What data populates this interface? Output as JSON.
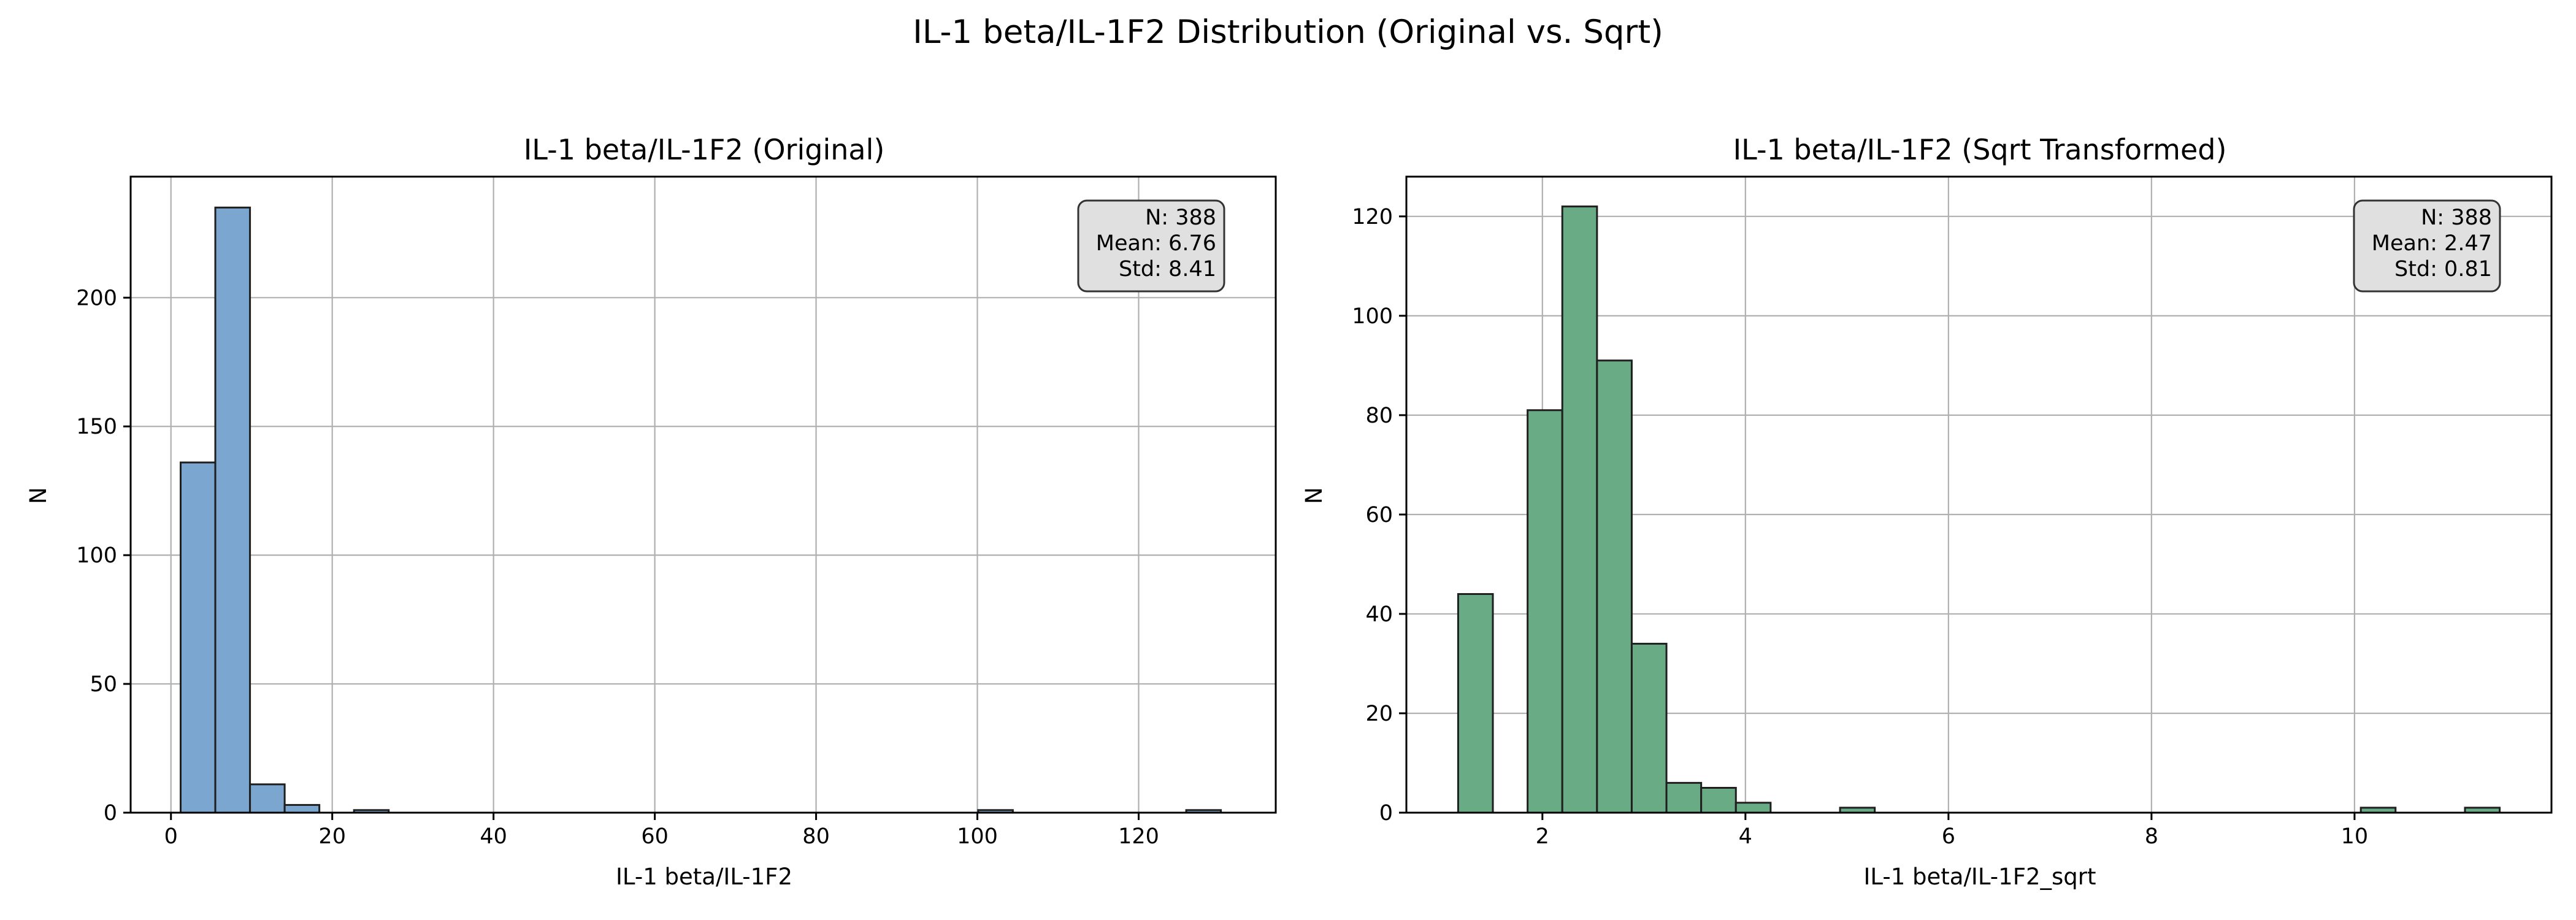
{
  "figure_title": "IL-1 beta/IL-1F2 Distribution (Original vs. Sqrt)",
  "chart_data": [
    {
      "type": "bar",
      "title": "IL-1 beta/IL-1F2 (Original)",
      "xlabel": "IL-1 beta/IL-1F2",
      "ylabel": "N",
      "xlim": [
        -5,
        137
      ],
      "ylim": [
        0,
        247
      ],
      "xticks": [
        0,
        20,
        40,
        60,
        80,
        100,
        120
      ],
      "yticks": [
        0,
        50,
        100,
        150,
        200
      ],
      "grid": true,
      "bar_color": "#7ba6cf",
      "edge_color": "#1f1f1f",
      "bin_width": 4.3,
      "bins_start": [
        1.2,
        5.5,
        9.8,
        14.1,
        18.4,
        22.7,
        27.0,
        31.3,
        35.6,
        39.9,
        44.2,
        48.5,
        52.8,
        57.1,
        61.4,
        65.7,
        70.0,
        74.3,
        78.6,
        82.9,
        87.2,
        91.5,
        95.8,
        100.1,
        104.4,
        108.7,
        113.0,
        117.3,
        121.6,
        125.9
      ],
      "counts": [
        136,
        235,
        11,
        3,
        0,
        1,
        0,
        0,
        0,
        0,
        0,
        0,
        0,
        0,
        0,
        0,
        0,
        0,
        0,
        0,
        0,
        0,
        0,
        1,
        0,
        0,
        0,
        0,
        0,
        1
      ],
      "stats": {
        "n": "N: 388",
        "mean": "Mean: 6.76",
        "std": "Std: 8.41"
      }
    },
    {
      "type": "bar",
      "title": "IL-1 beta/IL-1F2 (Sqrt Transformed)",
      "xlabel": "IL-1 beta/IL-1F2_sqrt",
      "ylabel": "N",
      "xlim": [
        0.66,
        11.94
      ],
      "ylim": [
        0,
        128
      ],
      "xticks": [
        2,
        4,
        6,
        8,
        10
      ],
      "yticks": [
        0,
        20,
        40,
        60,
        80,
        100,
        120
      ],
      "grid": true,
      "bar_color": "#69ab84",
      "edge_color": "#1f1f1f",
      "bin_width": 0.342,
      "bins_start": [
        1.17,
        1.512,
        1.854,
        2.196,
        2.538,
        2.88,
        3.222,
        3.564,
        3.906,
        4.248,
        4.59,
        4.932,
        5.274,
        5.616,
        5.958,
        6.3,
        6.642,
        6.984,
        7.326,
        7.668,
        8.01,
        8.352,
        8.694,
        9.036,
        9.378,
        9.72,
        10.062,
        10.404,
        10.746,
        11.088
      ],
      "counts": [
        44,
        0,
        81,
        122,
        91,
        34,
        6,
        5,
        2,
        0,
        0,
        1,
        0,
        0,
        0,
        0,
        0,
        0,
        0,
        0,
        0,
        0,
        0,
        0,
        0,
        0,
        1,
        0,
        0,
        1
      ],
      "stats": {
        "n": "N: 388",
        "mean": "Mean: 2.47",
        "std": "Std: 0.81"
      }
    }
  ]
}
